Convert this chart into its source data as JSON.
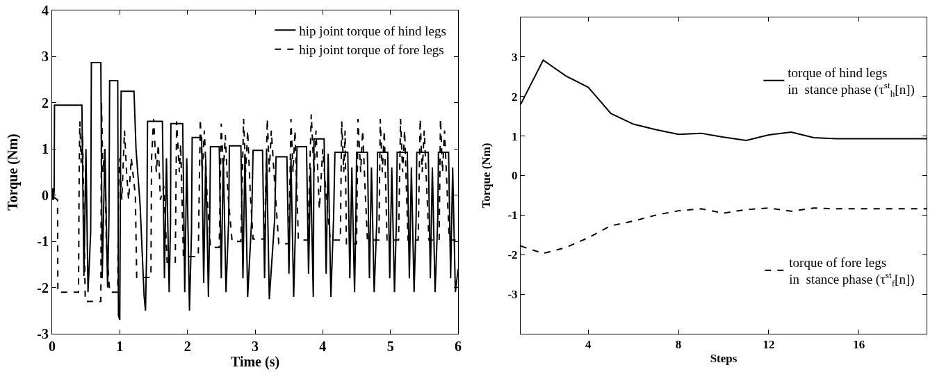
{
  "chart_data": [
    {
      "type": "line",
      "xlabel": "Time (s)",
      "ylabel": "Torque (Nm)",
      "xlim": [
        0,
        6
      ],
      "xticks": [
        0,
        1,
        2,
        3,
        4,
        5,
        6
      ],
      "ylim": [
        -3,
        4
      ],
      "yticks": [
        -3,
        -2,
        -1,
        0,
        1,
        2,
        3,
        4
      ],
      "grid": false,
      "legend": "top right",
      "series": [
        {
          "name": "hip joint torque of hind legs",
          "color": "#000000",
          "line_style": "solid",
          "x": [
            0,
            0.01,
            0.02,
            0.03,
            0.035,
            0.44,
            0.47,
            0.5,
            0.53,
            0.57,
            0.58,
            0.72,
            0.74,
            0.78,
            0.82,
            0.84,
            0.85,
            0.97,
            0.98,
            1.0,
            1.01,
            1.02,
            1.21,
            1.24,
            1.3,
            1.36,
            1.38,
            1.4,
            1.41,
            1.63,
            1.66,
            1.69,
            1.73,
            1.75,
            1.755,
            1.93,
            1.96,
            1.99,
            2.03,
            2.06,
            2.07,
            2.21,
            2.24,
            2.27,
            2.31,
            2.33,
            2.34,
            2.47,
            2.5,
            2.53,
            2.57,
            2.61,
            2.62,
            2.79,
            2.82,
            2.85,
            2.89,
            2.95,
            2.97,
            3.11,
            3.14,
            3.17,
            3.21,
            3.29,
            3.31,
            3.47,
            3.5,
            3.53,
            3.57,
            3.6,
            3.62,
            3.76,
            3.79,
            3.82,
            3.86,
            3.87,
            4.02,
            4.05,
            4.08,
            4.12,
            4.16,
            4.18,
            4.37,
            4.4,
            4.43,
            4.47,
            4.49,
            4.5,
            4.66,
            4.69,
            4.72,
            4.76,
            4.8,
            4.81,
            4.96,
            4.99,
            5.02,
            5.06,
            5.09,
            5.1,
            5.25,
            5.28,
            5.31,
            5.35,
            5.38,
            5.39,
            5.56,
            5.59,
            5.62,
            5.66,
            5.7,
            5.71,
            5.86,
            5.89,
            5.92,
            5.96,
            6.0
          ],
          "values": [
            0,
            0.15,
            -0.1,
            0.1,
            1.95,
            1.95,
            -1.75,
            1.0,
            -2.1,
            -0.8,
            2.87,
            2.87,
            -1.8,
            1.0,
            -2.0,
            -0.5,
            2.48,
            2.48,
            -2.6,
            -2.7,
            0.5,
            2.25,
            2.25,
            1.0,
            -0.2,
            -2.2,
            -2.5,
            -1.0,
            1.6,
            1.6,
            -1.8,
            0.8,
            -2.1,
            -0.6,
            1.55,
            1.55,
            -2.1,
            0.8,
            -2.5,
            -0.8,
            1.25,
            1.25,
            -1.9,
            0.8,
            -2.2,
            -0.5,
            1.05,
            1.05,
            -1.8,
            0.8,
            -2.1,
            -0.5,
            1.07,
            1.07,
            -1.8,
            0.9,
            -2.2,
            -0.5,
            0.97,
            0.97,
            -1.8,
            0.9,
            -2.25,
            -0.5,
            0.83,
            0.83,
            -1.7,
            0.8,
            -2.2,
            -0.5,
            1.05,
            1.05,
            -1.7,
            0.6,
            -2.2,
            1.22,
            1.22,
            -1.7,
            0.9,
            -2.2,
            -0.5,
            0.93,
            0.93,
            -1.8,
            0.6,
            -2.1,
            -0.5,
            0.93,
            0.93,
            -1.8,
            0.6,
            -2.1,
            -0.5,
            0.93,
            0.93,
            -1.8,
            0.6,
            -2.1,
            -0.5,
            0.93,
            0.93,
            -1.8,
            0.6,
            -2.1,
            -0.5,
            0.93,
            0.93,
            -1.8,
            0.6,
            -2.1,
            -0.5,
            0.93,
            0.93,
            -1.8,
            0.6,
            -2.1,
            -1.6
          ]
        },
        {
          "name": "hip joint torque of fore legs",
          "color": "#000000",
          "line_style": "dashed",
          "x": [
            0,
            0.01,
            0.02,
            0.03,
            0.08,
            0.085,
            0.39,
            0.4,
            0.41,
            0.43,
            0.45,
            0.47,
            0.49,
            0.72,
            0.73,
            0.75,
            0.78,
            0.8,
            0.85,
            0.97,
            0.98,
            1.0,
            1.03,
            1.07,
            1.1,
            1.13,
            1.17,
            1.23,
            1.25,
            1.46,
            1.47,
            1.5,
            1.54,
            1.57,
            1.6,
            1.65,
            1.7,
            1.82,
            1.84,
            1.88,
            1.9,
            1.92,
            1.94,
            2.16,
            2.19,
            2.22,
            2.25,
            2.29,
            2.34,
            2.47,
            2.5,
            2.53,
            2.56,
            2.6,
            2.66,
            2.79,
            2.83,
            2.86,
            2.89,
            2.93,
            2.97,
            3.14,
            3.18,
            3.21,
            3.24,
            3.3,
            3.35,
            3.5,
            3.53,
            3.56,
            3.59,
            3.62,
            3.64,
            3.78,
            3.83,
            3.87,
            3.9,
            3.95,
            4.0,
            4.05,
            4.11,
            4.26,
            4.28,
            4.31,
            4.33,
            4.35,
            4.5,
            4.52,
            4.56,
            4.59,
            4.63,
            4.66,
            4.83,
            4.85,
            4.88,
            4.91,
            4.95,
            5.12,
            5.15,
            5.18,
            5.21,
            5.26,
            5.41,
            5.44,
            5.47,
            5.5,
            5.57,
            5.72,
            5.74,
            5.77,
            5.8,
            5.87,
            6.0
          ],
          "values": [
            0,
            -0.1,
            0.15,
            -0.05,
            -0.1,
            -2.1,
            -2.1,
            0.5,
            1.6,
            0.7,
            1.3,
            -0.5,
            -2.3,
            -2.3,
            2.0,
            0.5,
            1.0,
            -1.0,
            -2.1,
            -2.1,
            0.2,
            0.8,
            -0.1,
            1.4,
            0.5,
            -0.1,
            0.8,
            0.0,
            -1.78,
            -1.78,
            0.8,
            1.65,
            0.5,
            1.1,
            -0.1,
            0.2,
            -1.45,
            -1.45,
            1.6,
            0.5,
            1.1,
            -0.1,
            -1.33,
            -1.33,
            1.65,
            0.5,
            1.4,
            0.0,
            -1.13,
            -1.13,
            1.55,
            0.5,
            1.3,
            0.0,
            -1.0,
            -1.0,
            1.65,
            0.5,
            1.4,
            0.0,
            -0.95,
            -0.95,
            1.65,
            0.5,
            1.4,
            0.0,
            -1.05,
            -1.05,
            1.65,
            0.5,
            1.4,
            0.0,
            -0.97,
            -0.97,
            1.75,
            0.5,
            1.4,
            -0.3,
            1.0,
            0.0,
            -0.97,
            -0.97,
            1.6,
            0.5,
            1.4,
            -1.05,
            -1.05,
            1.65,
            0.5,
            1.4,
            0.0,
            -0.97,
            -0.97,
            1.65,
            0.5,
            1.4,
            -0.97,
            -0.97,
            1.65,
            0.5,
            1.4,
            -0.97,
            -0.97,
            1.65,
            0.5,
            1.4,
            -0.97,
            -0.97,
            1.65,
            0.5,
            1.4,
            -0.97,
            -0.97
          ]
        }
      ]
    },
    {
      "type": "line",
      "xlabel": "Steps",
      "ylabel": "Torque (Nm)",
      "xlim": [
        1,
        19
      ],
      "xticks": [
        4,
        8,
        12,
        16
      ],
      "ylim": [
        -4,
        4
      ],
      "yticks": [
        -3,
        -2,
        -1,
        0,
        1,
        2,
        3
      ],
      "grid": false,
      "legend": "right",
      "x": [
        1,
        2,
        3,
        4,
        5,
        6,
        7,
        8,
        9,
        10,
        11,
        12,
        13,
        14,
        15,
        16,
        17,
        18,
        19
      ],
      "series": [
        {
          "name": "torque of hind legs\nin  stance phase (τ$^{st}$$_{h}$[n])",
          "color": "#000000",
          "line_style": "solid",
          "values": [
            1.8,
            2.92,
            2.52,
            2.23,
            1.57,
            1.3,
            1.16,
            1.04,
            1.07,
            0.97,
            0.89,
            1.03,
            1.1,
            0.96,
            0.93,
            0.93,
            0.93,
            0.93,
            0.93
          ]
        },
        {
          "name": "torque of fore legs\nin  stance phase (τ$^{st}$$_{f}$[n])",
          "color": "#000000",
          "line_style": "dashed",
          "values": [
            -1.78,
            -1.97,
            -1.82,
            -1.57,
            -1.27,
            -1.15,
            -1.0,
            -0.89,
            -0.84,
            -0.95,
            -0.86,
            -0.82,
            -0.9,
            -0.82,
            -0.84,
            -0.84,
            -0.84,
            -0.84,
            -0.84
          ]
        }
      ]
    }
  ]
}
